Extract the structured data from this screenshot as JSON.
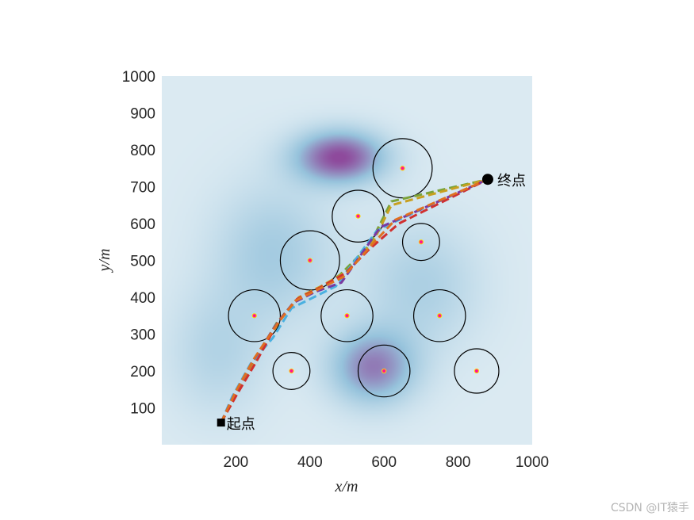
{
  "chart_data": {
    "type": "scatter",
    "xlabel": "x/m",
    "ylabel": "y/m",
    "xlim": [
      0,
      1000
    ],
    "ylim": [
      0,
      1000
    ],
    "xticks": [
      200,
      400,
      600,
      800,
      1000
    ],
    "yticks": [
      100,
      200,
      300,
      400,
      500,
      600,
      700,
      800,
      900,
      1000
    ],
    "grid": false,
    "background": {
      "type": "terrain-heatmap",
      "low_color": "#dbeaf2",
      "high_color": "#8e4a9c",
      "peaks": [
        {
          "x": 480,
          "y": 780,
          "sx": 85,
          "sy": 50,
          "amp": 1.0
        },
        {
          "x": 570,
          "y": 210,
          "sx": 80,
          "sy": 70,
          "amp": 0.75
        },
        {
          "x": 300,
          "y": 520,
          "sx": 110,
          "sy": 130,
          "amp": 0.35
        },
        {
          "x": 700,
          "y": 430,
          "sx": 110,
          "sy": 120,
          "amp": 0.3
        },
        {
          "x": 150,
          "y": 250,
          "sx": 90,
          "sy": 120,
          "amp": 0.25
        }
      ]
    },
    "obstacles": [
      {
        "x": 650,
        "y": 750,
        "r": 80
      },
      {
        "x": 530,
        "y": 620,
        "r": 70
      },
      {
        "x": 400,
        "y": 500,
        "r": 80
      },
      {
        "x": 700,
        "y": 550,
        "r": 50
      },
      {
        "x": 250,
        "y": 350,
        "r": 70
      },
      {
        "x": 500,
        "y": 350,
        "r": 70
      },
      {
        "x": 750,
        "y": 350,
        "r": 70
      },
      {
        "x": 350,
        "y": 200,
        "r": 50
      },
      {
        "x": 600,
        "y": 200,
        "r": 70
      },
      {
        "x": 850,
        "y": 200,
        "r": 60
      }
    ],
    "obstacle_center_color": "#ff1493",
    "obstacle_center_edge": "#ffd700",
    "start": {
      "x": 160,
      "y": 60,
      "label": "起点"
    },
    "end": {
      "x": 880,
      "y": 720,
      "label": "终点"
    },
    "series": [
      {
        "color": "#7aa33a",
        "points": [
          [
            160,
            60
          ],
          [
            200,
            140
          ],
          [
            250,
            230
          ],
          [
            310,
            330
          ],
          [
            360,
            390
          ],
          [
            420,
            420
          ],
          [
            480,
            460
          ],
          [
            560,
            540
          ],
          [
            620,
            660
          ],
          [
            880,
            720
          ]
        ]
      },
      {
        "color": "#c8a020",
        "points": [
          [
            160,
            60
          ],
          [
            210,
            150
          ],
          [
            260,
            240
          ],
          [
            320,
            340
          ],
          [
            370,
            400
          ],
          [
            430,
            430
          ],
          [
            500,
            470
          ],
          [
            570,
            550
          ],
          [
            620,
            650
          ],
          [
            880,
            720
          ]
        ]
      },
      {
        "color": "#4ab0e0",
        "points": [
          [
            160,
            60
          ],
          [
            190,
            130
          ],
          [
            240,
            220
          ],
          [
            300,
            290
          ],
          [
            350,
            370
          ],
          [
            410,
            400
          ],
          [
            470,
            430
          ],
          [
            580,
            580
          ],
          [
            660,
            620
          ],
          [
            880,
            720
          ]
        ]
      },
      {
        "color": "#d03030",
        "points": [
          [
            160,
            60
          ],
          [
            205,
            140
          ],
          [
            255,
            225
          ],
          [
            315,
            335
          ],
          [
            365,
            395
          ],
          [
            425,
            425
          ],
          [
            495,
            465
          ],
          [
            560,
            530
          ],
          [
            640,
            600
          ],
          [
            880,
            720
          ]
        ]
      },
      {
        "color": "#7a3aa0",
        "points": [
          [
            160,
            60
          ],
          [
            195,
            135
          ],
          [
            245,
            225
          ],
          [
            305,
            320
          ],
          [
            355,
            385
          ],
          [
            415,
            415
          ],
          [
            485,
            440
          ],
          [
            590,
            590
          ],
          [
            680,
            630
          ],
          [
            880,
            720
          ]
        ]
      },
      {
        "color": "#e07020",
        "points": [
          [
            160,
            60
          ],
          [
            200,
            145
          ],
          [
            250,
            235
          ],
          [
            310,
            325
          ],
          [
            360,
            390
          ],
          [
            420,
            420
          ],
          [
            490,
            455
          ],
          [
            565,
            540
          ],
          [
            630,
            610
          ],
          [
            880,
            720
          ]
        ]
      }
    ]
  },
  "watermark": "CSDN @IT猿手"
}
